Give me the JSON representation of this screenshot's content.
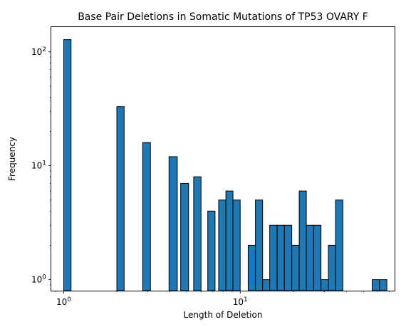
{
  "chart_data": {
    "type": "bar",
    "title": "Base Pair Deletions in Somatic Mutations of TP53 OVARY F",
    "xlabel": "Length of Deletion",
    "ylabel": "Frequency",
    "xscale": "log",
    "yscale": "log",
    "xlim": [
      0.85,
      75
    ],
    "ylim": [
      0.8,
      165
    ],
    "grid": false,
    "bar_color": "#1f77b4",
    "edge_color": "#000000",
    "x_ticks": [
      {
        "value": 1,
        "base": "10",
        "exp": "0"
      },
      {
        "value": 10,
        "base": "10",
        "exp": "1"
      }
    ],
    "y_ticks": [
      {
        "value": 1,
        "base": "10",
        "exp": "0"
      },
      {
        "value": 10,
        "base": "10",
        "exp": "1"
      },
      {
        "value": 100,
        "base": "10",
        "exp": "2"
      }
    ],
    "bins": [
      {
        "x0": 1.0,
        "x1": 1.1,
        "value": 128
      },
      {
        "x0": 2.0,
        "x1": 2.2,
        "value": 33
      },
      {
        "x0": 2.8,
        "x1": 3.1,
        "value": 16
      },
      {
        "x0": 3.95,
        "x1": 4.4,
        "value": 12
      },
      {
        "x0": 4.6,
        "x1": 5.1,
        "value": 7
      },
      {
        "x0": 5.45,
        "x1": 6.0,
        "value": 8
      },
      {
        "x0": 6.55,
        "x1": 7.2,
        "value": 4
      },
      {
        "x0": 7.55,
        "x1": 8.3,
        "value": 5
      },
      {
        "x0": 8.3,
        "x1": 9.1,
        "value": 6
      },
      {
        "x0": 9.1,
        "x1": 10.0,
        "value": 5
      },
      {
        "x0": 11.1,
        "x1": 12.2,
        "value": 2
      },
      {
        "x0": 12.2,
        "x1": 13.4,
        "value": 5
      },
      {
        "x0": 13.4,
        "x1": 14.7,
        "value": 1
      },
      {
        "x0": 14.7,
        "x1": 16.2,
        "value": 3
      },
      {
        "x0": 16.2,
        "x1": 17.8,
        "value": 3
      },
      {
        "x0": 17.8,
        "x1": 19.6,
        "value": 3
      },
      {
        "x0": 19.6,
        "x1": 21.6,
        "value": 2
      },
      {
        "x0": 21.6,
        "x1": 23.7,
        "value": 6
      },
      {
        "x0": 23.7,
        "x1": 26.1,
        "value": 3
      },
      {
        "x0": 26.1,
        "x1": 28.7,
        "value": 3
      },
      {
        "x0": 28.7,
        "x1": 31.6,
        "value": 1
      },
      {
        "x0": 31.6,
        "x1": 34.7,
        "value": 2
      },
      {
        "x0": 34.7,
        "x1": 38.2,
        "value": 5
      },
      {
        "x0": 56.0,
        "x1": 61.6,
        "value": 1
      },
      {
        "x0": 61.6,
        "x1": 67.8,
        "value": 1
      }
    ]
  }
}
